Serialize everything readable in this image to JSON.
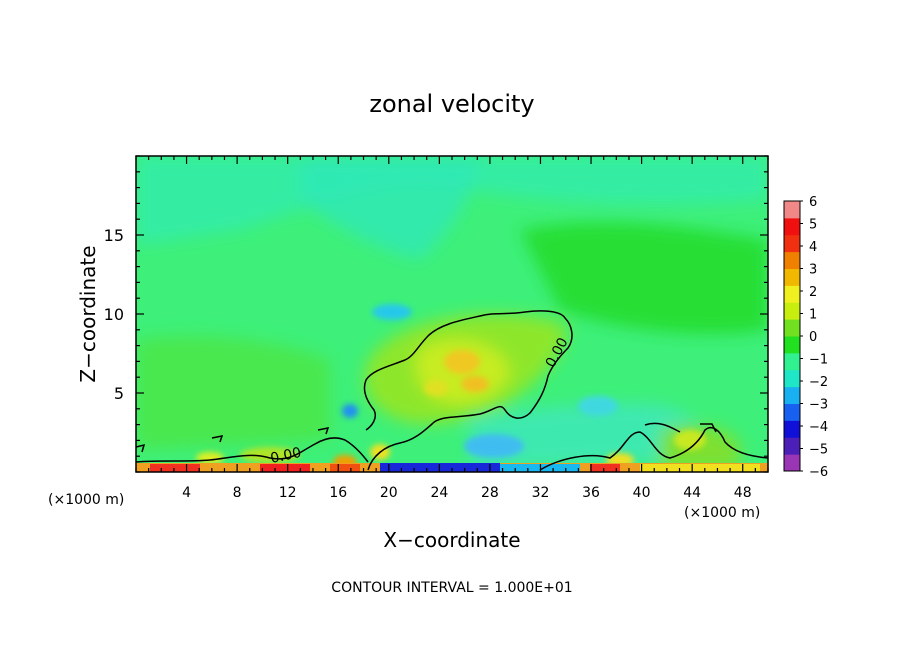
{
  "chart_data": {
    "type": "heatmap",
    "title": "zonal velocity",
    "xlabel": "X−coordinate",
    "ylabel": "Z−coordinate",
    "x_unit_left": "(×1000 m)",
    "x_unit_right": "(×1000 m)",
    "footer": "CONTOUR INTERVAL = 1.000E+01",
    "xlim": [
      0,
      50
    ],
    "ylim": [
      0,
      20
    ],
    "x_ticks": [
      4,
      8,
      12,
      16,
      20,
      24,
      28,
      32,
      36,
      40,
      44,
      48
    ],
    "y_ticks": [
      5,
      10,
      15
    ],
    "colorbar": {
      "range": [
        -6,
        6
      ],
      "labels": [
        "6",
        "5",
        "4",
        "3",
        "2",
        "1",
        "0",
        "−1",
        "−2",
        "−3",
        "−4",
        "−5",
        "−6"
      ],
      "colors": [
        "#9a35b5",
        "#4b1fb8",
        "#1010d8",
        "#1860f0",
        "#18b0f0",
        "#20e6c8",
        "#30f090",
        "#20e020",
        "#70e020",
        "#c8ee10",
        "#f0f020",
        "#f0b800",
        "#f08000",
        "#f03010",
        "#f01010",
        "#f08888"
      ]
    },
    "contour_labels": [
      {
        "text": "0.00",
        "x": 10.5,
        "y": 1.3
      },
      {
        "text": "0.00",
        "x": 33.5,
        "y": 7.5
      }
    ],
    "field_features": [
      {
        "name": "positive core",
        "x": 26,
        "y": 7,
        "value": 2.2
      },
      {
        "name": "positive core",
        "x": 25,
        "y": 5.3,
        "value": 1.8
      },
      {
        "name": "negative cell",
        "x": 19.5,
        "y": 10,
        "value": -2.2
      },
      {
        "name": "surface jet",
        "x": 26,
        "y": 0.3,
        "value": -5.0
      }
    ]
  }
}
